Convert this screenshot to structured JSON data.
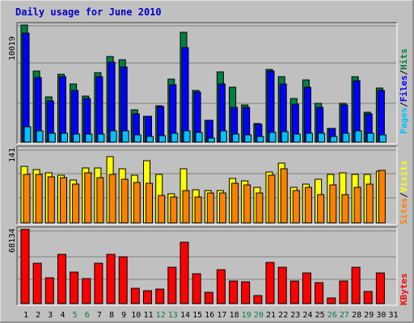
{
  "chart_data": {
    "type": "bar",
    "title": "Daily usage for June 2010",
    "days": [
      "1",
      "2",
      "3",
      "4",
      "5",
      "6",
      "7",
      "8",
      "9",
      "10",
      "11",
      "12",
      "13",
      "14",
      "15",
      "16",
      "17",
      "18",
      "19",
      "20",
      "21",
      "22",
      "23",
      "24",
      "25",
      "26",
      "27",
      "28",
      "29",
      "30",
      "31"
    ],
    "weekend_days": [
      "5",
      "6",
      "12",
      "13",
      "19",
      "20",
      "26",
      "27"
    ],
    "colors": {
      "background": "#c0c0c0",
      "title": "#0000cc",
      "hits": "#008040",
      "files": "#0000ff",
      "pages": "#00c0ff",
      "visits": "#ffff00",
      "sites": "#ff8000",
      "kbytes": "#ff0000",
      "weekend_label": "#008040",
      "day_label": "#000000"
    },
    "panels": [
      {
        "id": "top",
        "max_label": "10019",
        "max": 10019,
        "legend": [
          {
            "label": "Hits",
            "color": "#008040"
          },
          {
            "label": "Files",
            "color": "#0000ff"
          },
          {
            "label": "Pages",
            "color": "#00c0ff"
          }
        ],
        "series": [
          {
            "name": "Hits",
            "color": "#008040",
            "values": [
              10019,
              6100,
              3900,
              5800,
              4950,
              3950,
              5950,
              7300,
              7050,
              2750,
              2200,
              3100,
              5400,
              9400,
              4400,
              1850,
              6000,
              4700,
              3200,
              1600,
              6250,
              5600,
              3700,
              5350,
              3350,
              1200,
              3350,
              5600,
              2550,
              4600,
              0
            ]
          },
          {
            "name": "Files",
            "color": "#0000ff",
            "values": [
              9300,
              5500,
              3550,
              5600,
              4450,
              3700,
              5600,
              6850,
              6400,
              2400,
              2200,
              3050,
              4900,
              8100,
              4300,
              1850,
              5000,
              2950,
              3000,
              1550,
              6050,
              4950,
              3250,
              4700,
              3000,
              1200,
              3200,
              5250,
              2400,
              4400,
              0
            ]
          },
          {
            "name": "Pages",
            "color": "#00c0ff",
            "values": [
              1300,
              1000,
              750,
              750,
              700,
              700,
              700,
              1000,
              1000,
              600,
              450,
              550,
              750,
              1000,
              800,
              350,
              1000,
              700,
              650,
              450,
              800,
              900,
              700,
              750,
              750,
              450,
              750,
              950,
              750,
              650,
              0
            ]
          }
        ]
      },
      {
        "id": "middle",
        "max_label": "141",
        "max": 141,
        "legend": [
          {
            "label": "Sites",
            "color": "#ff8000"
          },
          {
            "label": "Visits",
            "color": "#ffff00"
          }
        ],
        "series": [
          {
            "name": "Visits",
            "color": "#ffff00",
            "values": [
              121,
              113,
              107,
              102,
              91,
              117,
              117,
              141,
              116,
              102,
              132,
              104,
              62,
              115,
              70,
              68,
              69,
              95,
              90,
              76,
              108,
              127,
              76,
              83,
              93,
              104,
              107,
              104,
              104,
              110,
              0
            ]
          },
          {
            "name": "Sites",
            "color": "#ff8000",
            "values": [
              104,
              104,
              98,
              96,
              82,
              106,
              96,
              103,
              93,
              86,
              84,
              58,
              55,
              68,
              55,
              63,
              64,
              84,
              80,
              64,
              101,
              115,
              69,
              76,
              60,
              80,
              60,
              76,
              82,
              111,
              0
            ]
          }
        ]
      },
      {
        "id": "bottom",
        "max_label": "68134",
        "max": 68134,
        "legend": [
          {
            "label": "KBytes",
            "color": "#ff0000"
          }
        ],
        "series": [
          {
            "name": "KBytes",
            "color": "#ff0000",
            "values": [
              68134,
              37000,
              24000,
              45000,
              29000,
              23000,
              37000,
              45000,
              43000,
              14000,
              11500,
              13500,
              33000,
              56000,
              27500,
              10500,
              31000,
              21000,
              20000,
              7500,
              38000,
              33000,
              21000,
              28000,
              19000,
              5000,
              21000,
              33000,
              11000,
              28000,
              0
            ]
          }
        ]
      }
    ]
  }
}
